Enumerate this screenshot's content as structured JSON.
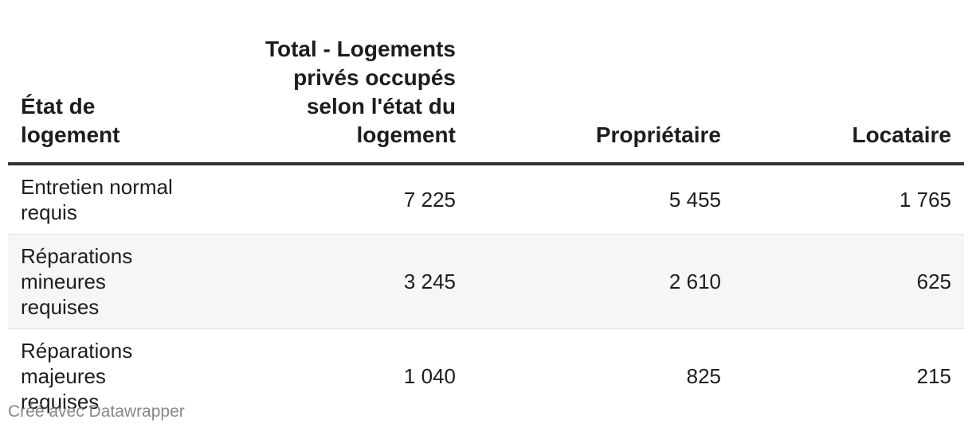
{
  "table": {
    "headers": [
      "État de logement",
      "Total - Logements privés occupés selon l'état du logement",
      "Propriétaire",
      "Locataire"
    ],
    "rows": [
      {
        "label": "Entretien normal requis",
        "total": "7 225",
        "proprietaire": "5 455",
        "locataire": "1 765"
      },
      {
        "label": "Réparations mineures requises",
        "total": "3 245",
        "proprietaire": "2 610",
        "locataire": "625"
      },
      {
        "label": "Réparations majeures requises",
        "total": "1 040",
        "proprietaire": "825",
        "locataire": "215"
      }
    ]
  },
  "footer": {
    "credit": "Créé avec Datawrapper"
  }
}
